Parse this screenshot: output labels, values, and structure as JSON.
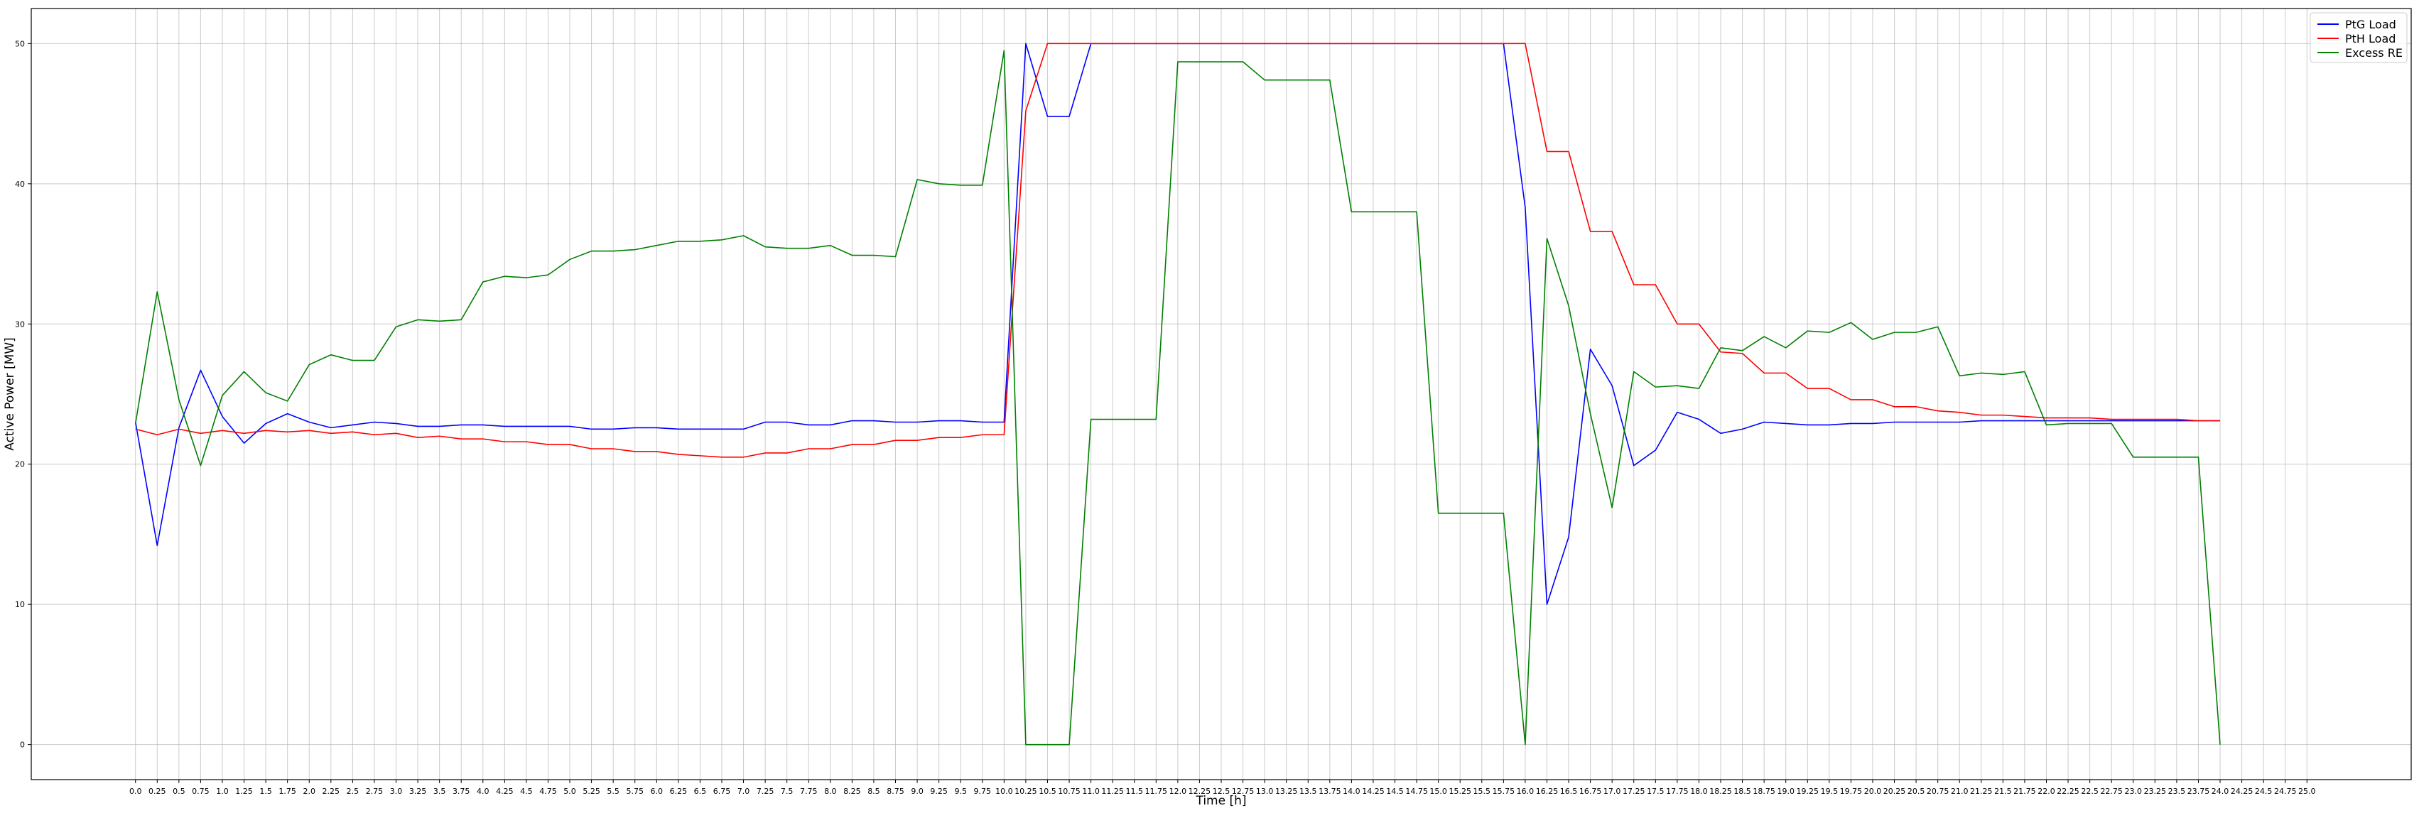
{
  "chart_data": {
    "type": "line",
    "title": "",
    "xlabel": "Time [h]",
    "ylabel": "Active Power [MW]",
    "xlim": [
      -1.2,
      26.2
    ],
    "ylim": [
      -2.5,
      52.5
    ],
    "grid": true,
    "legend_position": "top-right",
    "x_ticks": [
      "0.0",
      "0.25",
      "0.5",
      "0.75",
      "1.0",
      "1.25",
      "1.5",
      "1.75",
      "2.0",
      "2.25",
      "2.5",
      "2.75",
      "3.0",
      "3.25",
      "3.5",
      "3.75",
      "4.0",
      "4.25",
      "4.5",
      "4.75",
      "5.0",
      "5.25",
      "5.5",
      "5.75",
      "6.0",
      "6.25",
      "6.5",
      "6.75",
      "7.0",
      "7.25",
      "7.5",
      "7.75",
      "8.0",
      "8.25",
      "8.5",
      "8.75",
      "9.0",
      "9.25",
      "9.5",
      "9.75",
      "10.0",
      "10.25",
      "10.5",
      "10.75",
      "11.0",
      "11.25",
      "11.5",
      "11.75",
      "12.0",
      "12.25",
      "12.5",
      "12.75",
      "13.0",
      "13.25",
      "13.5",
      "13.75",
      "14.0",
      "14.25",
      "14.5",
      "14.75",
      "15.0",
      "15.25",
      "15.5",
      "15.75",
      "16.0",
      "16.25",
      "16.5",
      "16.75",
      "17.0",
      "17.25",
      "17.5",
      "17.75",
      "18.0",
      "18.25",
      "18.5",
      "18.75",
      "19.0",
      "19.25",
      "19.5",
      "19.75",
      "20.0",
      "20.25",
      "20.5",
      "20.75",
      "21.0",
      "21.25",
      "21.5",
      "21.75",
      "22.0",
      "22.25",
      "22.5",
      "22.75",
      "23.0",
      "23.25",
      "23.5",
      "23.75",
      "24.0",
      "24.25",
      "24.5",
      "24.75",
      "25.0"
    ],
    "y_ticks": [
      "0",
      "10",
      "20",
      "30",
      "40",
      "50"
    ],
    "x": [
      0,
      0.25,
      0.5,
      0.75,
      1,
      1.25,
      1.5,
      1.75,
      2,
      2.25,
      2.5,
      2.75,
      3,
      3.25,
      3.5,
      3.75,
      4,
      4.25,
      4.5,
      4.75,
      5,
      5.25,
      5.5,
      5.75,
      6,
      6.25,
      6.5,
      6.75,
      7,
      7.25,
      7.5,
      7.75,
      8,
      8.25,
      8.5,
      8.75,
      9,
      9.25,
      9.5,
      9.75,
      10,
      10.25,
      10.5,
      10.75,
      11,
      11.25,
      11.5,
      11.75,
      12,
      12.25,
      12.5,
      12.75,
      13,
      13.25,
      13.5,
      13.75,
      14,
      14.25,
      14.5,
      14.75,
      15,
      15.25,
      15.5,
      15.75,
      16,
      16.25,
      16.5,
      16.75,
      17,
      17.25,
      17.5,
      17.75,
      18,
      18.25,
      18.5,
      18.75,
      19,
      19.25,
      19.5,
      19.75,
      20,
      20.25,
      20.5,
      20.75,
      21,
      21.25,
      21.5,
      21.75,
      22,
      22.25,
      22.5,
      22.75,
      23,
      23.25,
      23.5,
      23.75,
      24
    ],
    "series": [
      {
        "name": "PtG Load",
        "color": "#0000ff",
        "values": [
          23,
          14.2,
          22.6,
          26.7,
          23.4,
          21.5,
          22.9,
          23.6,
          23,
          22.6,
          22.8,
          23,
          22.9,
          22.7,
          22.7,
          22.8,
          22.8,
          22.7,
          22.7,
          22.7,
          22.7,
          22.5,
          22.5,
          22.6,
          22.6,
          22.5,
          22.5,
          22.5,
          22.5,
          23,
          23,
          22.8,
          22.8,
          23.1,
          23.1,
          23,
          23,
          23.1,
          23.1,
          23,
          23,
          50,
          44.8,
          44.8,
          50,
          50,
          50,
          50,
          50,
          50,
          50,
          50,
          50,
          50,
          50,
          50,
          50,
          50,
          50,
          50,
          50,
          50,
          50,
          50,
          38.3,
          10,
          14.8,
          28.2,
          25.6,
          19.9,
          21,
          23.7,
          23.2,
          22.2,
          22.5,
          23,
          22.9,
          22.8,
          22.8,
          22.9,
          22.9,
          23,
          23,
          23,
          23,
          23.1,
          23.1,
          23.1,
          23.1,
          23.1,
          23.1,
          23.1,
          23.1,
          23.1,
          23.1,
          23.1,
          23.1
        ]
      },
      {
        "name": "PtH Load",
        "color": "#ff0000",
        "values": [
          22.5,
          22.1,
          22.5,
          22.2,
          22.4,
          22.2,
          22.4,
          22.3,
          22.4,
          22.2,
          22.3,
          22.1,
          22.2,
          21.9,
          22,
          21.8,
          21.8,
          21.6,
          21.6,
          21.4,
          21.4,
          21.1,
          21.1,
          20.9,
          20.9,
          20.7,
          20.6,
          20.5,
          20.5,
          20.8,
          20.8,
          21.1,
          21.1,
          21.4,
          21.4,
          21.7,
          21.7,
          21.9,
          21.9,
          22.1,
          22.1,
          45.2,
          50,
          50,
          50,
          50,
          50,
          50,
          50,
          50,
          50,
          50,
          50,
          50,
          50,
          50,
          50,
          50,
          50,
          50,
          50,
          50,
          50,
          50,
          50,
          42.3,
          42.3,
          36.6,
          36.6,
          32.8,
          32.8,
          30,
          30,
          28,
          27.9,
          26.5,
          26.5,
          25.4,
          25.4,
          24.6,
          24.6,
          24.1,
          24.1,
          23.8,
          23.7,
          23.5,
          23.5,
          23.4,
          23.3,
          23.3,
          23.3,
          23.2,
          23.2,
          23.2,
          23.2,
          23.1,
          23.1
        ]
      },
      {
        "name": "Excess RE",
        "color": "#008000",
        "values": [
          22.9,
          32.3,
          24.6,
          19.9,
          24.9,
          26.6,
          25.1,
          24.5,
          27.1,
          27.8,
          27.4,
          27.4,
          29.8,
          30.3,
          30.2,
          30.3,
          33,
          33.4,
          33.3,
          33.5,
          34.6,
          35.2,
          35.2,
          35.3,
          35.6,
          35.9,
          35.9,
          36,
          36.3,
          35.5,
          35.4,
          35.4,
          35.6,
          34.9,
          34.9,
          34.8,
          40.3,
          40,
          39.9,
          39.9,
          49.5,
          0,
          0,
          0,
          23.2,
          23.2,
          23.2,
          23.2,
          48.7,
          48.7,
          48.7,
          48.7,
          47.4,
          47.4,
          47.4,
          47.4,
          38,
          38,
          38,
          38,
          16.5,
          16.5,
          16.5,
          16.5,
          0,
          36.1,
          31.3,
          23.6,
          16.9,
          26.6,
          25.5,
          25.6,
          25.4,
          28.3,
          28.1,
          29.1,
          28.3,
          29.5,
          29.4,
          30.1,
          28.9,
          29.4,
          29.4,
          29.8,
          26.3,
          26.5,
          26.4,
          26.6,
          22.8,
          22.9,
          22.9,
          22.9,
          20.5,
          20.5,
          20.5,
          20.5,
          0
        ]
      }
    ]
  }
}
